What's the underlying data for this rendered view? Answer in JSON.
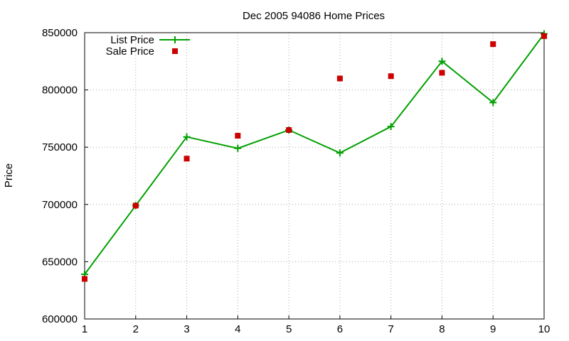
{
  "chart_data": {
    "type": "line",
    "title": "Dec 2005 94086 Home Prices",
    "xlabel": "",
    "ylabel": "Price",
    "x": [
      1,
      2,
      3,
      4,
      5,
      6,
      7,
      8,
      9,
      10
    ],
    "xlim": [
      1,
      10
    ],
    "ylim": [
      600000,
      850000
    ],
    "x_ticks": [
      "1",
      "2",
      "3",
      "4",
      "5",
      "6",
      "7",
      "8",
      "9",
      "10"
    ],
    "y_ticks": [
      "600000",
      "650000",
      "700000",
      "750000",
      "800000",
      "850000"
    ],
    "x_tick_values": [
      1,
      2,
      3,
      4,
      5,
      6,
      7,
      8,
      9,
      10
    ],
    "y_tick_values": [
      600000,
      650000,
      700000,
      750000,
      800000,
      850000
    ],
    "grid": true,
    "legend_position": "top-left",
    "series": [
      {
        "name": "List Price",
        "style": "line-with-plus-markers",
        "color": "#00a000",
        "values": [
          639000,
          699000,
          759000,
          749000,
          765000,
          745000,
          768000,
          825000,
          789000,
          849000
        ]
      },
      {
        "name": "Sale Price",
        "style": "square-markers",
        "color": "#cc0000",
        "values": [
          635000,
          699000,
          740000,
          760000,
          765000,
          810000,
          812000,
          815000,
          840000,
          847000
        ]
      }
    ]
  }
}
